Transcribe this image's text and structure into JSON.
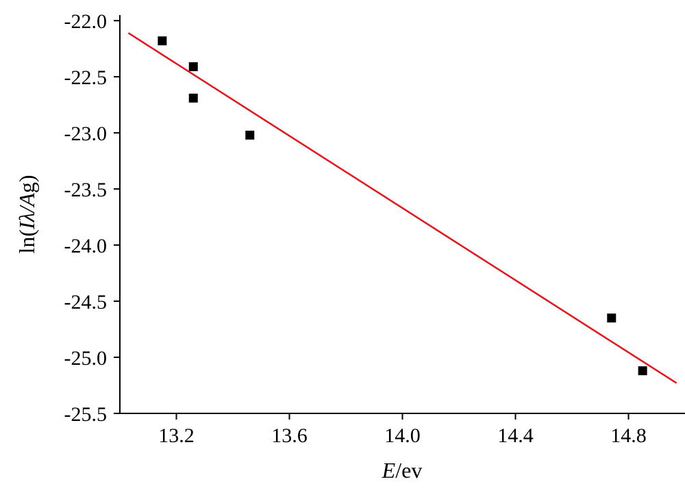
{
  "chart_data": {
    "type": "scatter",
    "title": "",
    "xlabel": {
      "italic": "E",
      "rest": "/ev"
    },
    "ylabel": {
      "pre": "ln(",
      "italic": "Iλ/A",
      "post": "g)"
    },
    "xlim": [
      13.0,
      15.0
    ],
    "ylim": [
      -25.5,
      -21.95
    ],
    "x_ticks": [
      13.2,
      13.6,
      14.0,
      14.4,
      14.8
    ],
    "x_tick_labels": [
      "13.2",
      "13.6",
      "14.0",
      "14.4",
      "14.8"
    ],
    "y_ticks": [
      -22.0,
      -22.5,
      -23.0,
      -23.5,
      -24.0,
      -24.5,
      -25.0,
      -25.5
    ],
    "y_tick_labels": [
      "-22.0",
      "-22.5",
      "-23.0",
      "-23.5",
      "-24.0",
      "-24.5",
      "-25.0",
      "-25.5"
    ],
    "grid": false,
    "series": [
      {
        "kind": "points",
        "marker": "square",
        "color": "#000000",
        "points": [
          {
            "x": 13.15,
            "y": -22.18
          },
          {
            "x": 13.26,
            "y": -22.41
          },
          {
            "x": 13.26,
            "y": -22.69
          },
          {
            "x": 13.46,
            "y": -23.02
          },
          {
            "x": 14.74,
            "y": -24.65
          },
          {
            "x": 14.85,
            "y": -25.12
          }
        ]
      },
      {
        "kind": "fit_line",
        "color": "#e8141b",
        "points": [
          {
            "x": 13.03,
            "y": -22.11
          },
          {
            "x": 14.97,
            "y": -25.23
          }
        ]
      }
    ]
  }
}
